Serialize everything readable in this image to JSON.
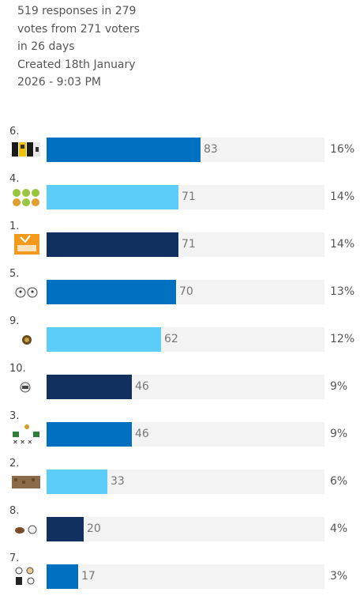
{
  "summary": {
    "line1": "519 responses in 279",
    "line2": "votes from 271 voters",
    "line3": "in 26 days",
    "line4": "Created 18th January",
    "line5": "2026 - 9:03 PM"
  },
  "colors": {
    "mid_blue": "#0070c0",
    "light_blue": "#5ccdf8",
    "dark_navy": "#12305f",
    "track": "#f3f3f3"
  },
  "results": [
    {
      "rank": "6.",
      "votes": 83,
      "percent": "16%",
      "color": "#0070c0",
      "thumb": "image-option-6"
    },
    {
      "rank": "4.",
      "votes": 71,
      "percent": "14%",
      "color": "#5ccdf8",
      "thumb": "image-option-4"
    },
    {
      "rank": "1.",
      "votes": 71,
      "percent": "14%",
      "color": "#12305f",
      "thumb": "image-option-1"
    },
    {
      "rank": "5.",
      "votes": 70,
      "percent": "13%",
      "color": "#0070c0",
      "thumb": "image-option-5"
    },
    {
      "rank": "9.",
      "votes": 62,
      "percent": "12%",
      "color": "#5ccdf8",
      "thumb": "image-option-9"
    },
    {
      "rank": "10.",
      "votes": 46,
      "percent": "9%",
      "color": "#12305f",
      "thumb": "image-option-10"
    },
    {
      "rank": "3.",
      "votes": 46,
      "percent": "9%",
      "color": "#0070c0",
      "thumb": "image-option-3"
    },
    {
      "rank": "2.",
      "votes": 33,
      "percent": "6%",
      "color": "#5ccdf8",
      "thumb": "image-option-2"
    },
    {
      "rank": "8.",
      "votes": 20,
      "percent": "4%",
      "color": "#12305f",
      "thumb": "image-option-8"
    },
    {
      "rank": "7.",
      "votes": 17,
      "percent": "3%",
      "color": "#0070c0",
      "thumb": "image-option-7"
    }
  ]
}
